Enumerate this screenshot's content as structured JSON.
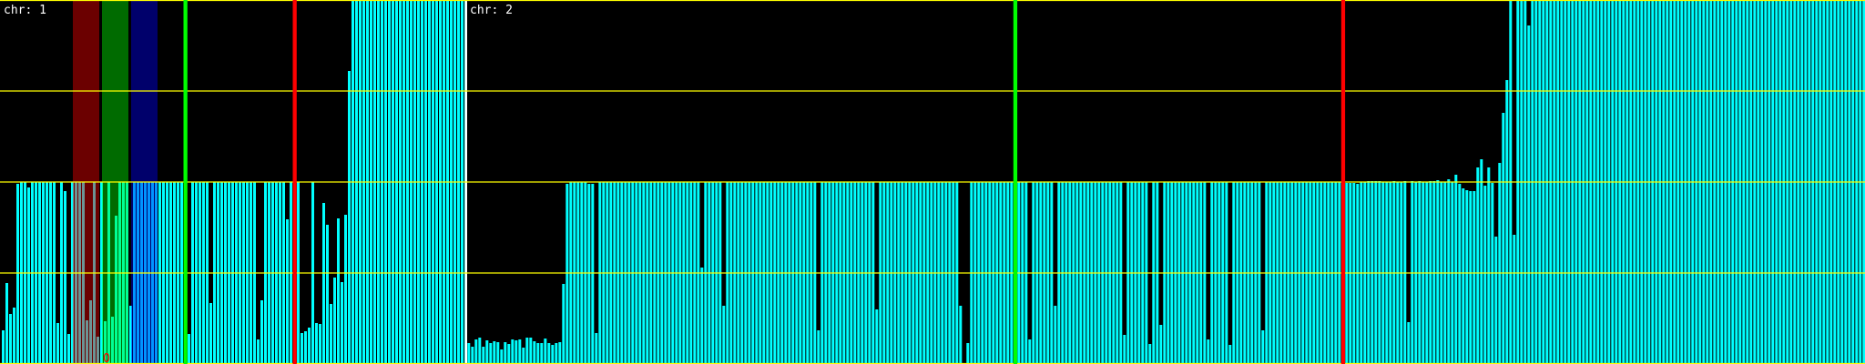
{
  "chart_data": {
    "type": "bar",
    "ylim": [
      0,
      4
    ],
    "gridlines_y": [
      0,
      1,
      2,
      3,
      4
    ],
    "grid": true,
    "colors": {
      "bar": "#00ffff",
      "grid": "#ffff00",
      "separator": "#ffffff",
      "background": "#000000",
      "marker_green": "#00ff00",
      "marker_red": "#ff0000",
      "band_red": "#ff0000",
      "band_green": "#00ff00",
      "band_blue": "#0000ff",
      "point_marker": "#ff0000"
    },
    "chromosomes": [
      {
        "label": "chr: 1",
        "values": [
          0.37,
          0.89,
          0.55,
          0.62,
          1.98,
          2,
          2,
          1.94,
          2,
          2,
          2,
          2,
          2,
          2,
          2,
          0.45,
          2,
          1.9,
          0.33,
          2,
          2,
          2,
          2,
          0.48,
          0.7,
          2,
          0.3,
          2,
          0.47,
          2,
          0.52,
          1.63,
          2,
          2,
          2,
          0.64,
          2,
          2,
          2,
          2,
          2,
          2,
          2,
          2,
          2,
          2,
          2,
          2,
          2,
          2,
          2,
          0.33,
          2,
          2,
          2,
          2,
          2,
          0.67,
          2,
          2,
          2,
          2,
          2,
          2,
          2,
          2,
          2,
          2,
          2,
          2,
          0.27,
          0.7,
          2,
          2,
          2,
          2,
          2,
          2,
          1.59,
          2,
          2,
          2,
          0.34,
          0.36,
          0.4,
          2,
          0.45,
          0.44,
          1.77,
          1.53,
          0.66,
          0.95,
          1.6,
          0.9,
          1.64,
          3.22,
          4,
          4,
          4,
          4,
          4,
          4,
          4,
          4,
          4,
          4,
          4,
          4,
          4,
          4,
          4,
          4,
          4,
          4,
          4,
          4,
          4,
          4,
          4,
          4,
          4,
          4,
          4,
          4,
          4,
          4,
          4,
          4
        ],
        "markers": [
          {
            "bin": 50,
            "color": "green"
          },
          {
            "bin": 80,
            "color": "red"
          }
        ],
        "bands": [
          {
            "from_bin": 19.5,
            "to_bin": 26.75,
            "color": "red"
          },
          {
            "from_bin": 27.5,
            "to_bin": 34.75,
            "color": "green"
          },
          {
            "from_bin": 35.5,
            "to_bin": 42.75,
            "color": "blue"
          }
        ],
        "point_markers": [
          {
            "bin": 28,
            "value": 0.05
          }
        ]
      },
      {
        "label": "chr: 2",
        "values": [
          0.23,
          0.19,
          0.27,
          0.29,
          0.19,
          0.26,
          0.23,
          0.25,
          0.24,
          0.16,
          0.24,
          0.22,
          0.27,
          0.26,
          0.27,
          0.18,
          0.29,
          0.29,
          0.25,
          0.23,
          0.23,
          0.28,
          0.23,
          0.21,
          0.23,
          0.24,
          0.88,
          1.98,
          2,
          2,
          2,
          2,
          2,
          1.98,
          1.98,
          0.34,
          2,
          2,
          2,
          2,
          2,
          2,
          2,
          2,
          2,
          2,
          2,
          2,
          2,
          2,
          2,
          2,
          2,
          2,
          2,
          2,
          2,
          2,
          2,
          2,
          2,
          2,
          2,
          2,
          1.06,
          2,
          2,
          2,
          2,
          2,
          0.64,
          2,
          2,
          2,
          2,
          2,
          2,
          2,
          2,
          2,
          2,
          2,
          2,
          2,
          2,
          2,
          2,
          2,
          2,
          2,
          2,
          2,
          2,
          2,
          2,
          2,
          0.37,
          2,
          2,
          2,
          2,
          2,
          2,
          2,
          2,
          2,
          2,
          2,
          2,
          2,
          2,
          2,
          0.6,
          2,
          2,
          2,
          2,
          2,
          2,
          2,
          2,
          2,
          2,
          2,
          2,
          2,
          2,
          2,
          2,
          2,
          2,
          2,
          2,
          2,
          2,
          0.64,
          0,
          0.23,
          2,
          2,
          2,
          2,
          2,
          2,
          2,
          2,
          2,
          2,
          2,
          2,
          2,
          2,
          2,
          2,
          0.27,
          2,
          2,
          2,
          2,
          2,
          2,
          0.64,
          2,
          2,
          2,
          2,
          2,
          2,
          2,
          2,
          2,
          2,
          2,
          2,
          2,
          2,
          2,
          2,
          2,
          2,
          0.32,
          2,
          2,
          2,
          2,
          2,
          2,
          0.22,
          2,
          2,
          0.43,
          2,
          2,
          2,
          2,
          2,
          2,
          2,
          2,
          2,
          2,
          2,
          2,
          0.27,
          2,
          2,
          2,
          2,
          2,
          0.21,
          2,
          2,
          2,
          2,
          2,
          2,
          2,
          2,
          0.37,
          2,
          2,
          2,
          2,
          2,
          2,
          2,
          2,
          2,
          2,
          2,
          2,
          2,
          2,
          2,
          2,
          2,
          2,
          2,
          2,
          2,
          2,
          1.99,
          1.99,
          1.99,
          1.98,
          2,
          2,
          2.01,
          2.01,
          2.01,
          2.01,
          2,
          2,
          2,
          2.01,
          2,
          2,
          2.01,
          0.46,
          2.01,
          2,
          2.01,
          2,
          2,
          2.01,
          2.01,
          2.02,
          2,
          2,
          2.03,
          2,
          2.08,
          1.98,
          1.93,
          1.91,
          1.9,
          1.9,
          2.16,
          2.25,
          1.96,
          2.16,
          1.99,
          1.4,
          2.21,
          2.76,
          3.12,
          4,
          1.42,
          4,
          4,
          4,
          3.72,
          4,
          4,
          4,
          4,
          4,
          4,
          4,
          4,
          4,
          4,
          4,
          4,
          4,
          4,
          4,
          4,
          4,
          4,
          4,
          4,
          4,
          4,
          4,
          4,
          4,
          4,
          4,
          4,
          4,
          4,
          4,
          4,
          4,
          4,
          4,
          4,
          4,
          4,
          4,
          4,
          4,
          4,
          4,
          4,
          4,
          4,
          4,
          4,
          4,
          4,
          4,
          4,
          4,
          4,
          4,
          4,
          4,
          4,
          4,
          4,
          4,
          4,
          4,
          4,
          4,
          4,
          4,
          4,
          4,
          4,
          4,
          4,
          4,
          4,
          4,
          4,
          4,
          4,
          4,
          4,
          4,
          4,
          4,
          4,
          4,
          4,
          4,
          4,
          4,
          4,
          4,
          4
        ],
        "markers": [
          {
            "bin": 150,
            "color": "green"
          },
          {
            "bin": 240,
            "color": "red"
          }
        ],
        "bands": [],
        "point_markers": []
      }
    ]
  }
}
